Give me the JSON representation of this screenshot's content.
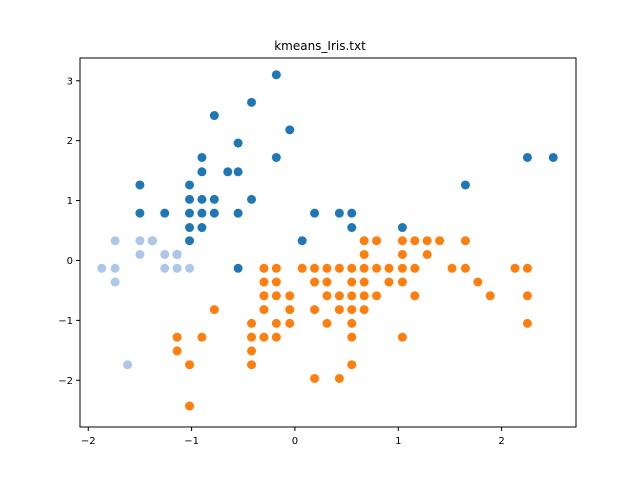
{
  "chart_data": {
    "type": "scatter",
    "title": "kmeans_Iris.txt",
    "xlabel": "",
    "ylabel": "",
    "xlim": [
      -2.08,
      2.72
    ],
    "ylim": [
      -2.78,
      3.38
    ],
    "xticks": [
      -2,
      -1,
      0,
      1,
      2
    ],
    "yticks": [
      -2,
      -1,
      0,
      1,
      2,
      3
    ],
    "grid": false,
    "legend": "none",
    "series": [
      {
        "color": "#1f77b4",
        "points": [
          [
            -0.18,
            3.1
          ],
          [
            -0.42,
            2.64
          ],
          [
            -0.78,
            2.42
          ],
          [
            -0.05,
            2.18
          ],
          [
            -0.55,
            1.96
          ],
          [
            -0.18,
            1.72
          ],
          [
            -0.9,
            1.72
          ],
          [
            2.25,
            1.72
          ],
          [
            2.5,
            1.72
          ],
          [
            -0.9,
            1.48
          ],
          [
            -0.65,
            1.48
          ],
          [
            -0.55,
            1.48
          ],
          [
            -1.5,
            1.26
          ],
          [
            -1.02,
            1.26
          ],
          [
            1.65,
            1.26
          ],
          [
            -1.02,
            1.02
          ],
          [
            -0.9,
            1.02
          ],
          [
            -0.78,
            1.02
          ],
          [
            -0.42,
            1.02
          ],
          [
            -1.5,
            0.79
          ],
          [
            -1.26,
            0.79
          ],
          [
            -1.02,
            0.79
          ],
          [
            -0.9,
            0.79
          ],
          [
            -0.78,
            0.79
          ],
          [
            -0.55,
            0.79
          ],
          [
            0.19,
            0.79
          ],
          [
            0.43,
            0.79
          ],
          [
            0.55,
            0.79
          ],
          [
            -1.02,
            0.55
          ],
          [
            -0.9,
            0.55
          ],
          [
            0.55,
            0.55
          ],
          [
            1.04,
            0.55
          ],
          [
            -1.38,
            0.33
          ],
          [
            -1.02,
            0.33
          ],
          [
            0.07,
            0.33
          ],
          [
            -1.14,
            0.1
          ],
          [
            -0.55,
            -0.13
          ]
        ]
      },
      {
        "color": "#aec7e8",
        "points": [
          [
            -1.74,
            0.33
          ],
          [
            -1.5,
            0.33
          ],
          [
            -1.38,
            0.33
          ],
          [
            -1.5,
            0.1
          ],
          [
            -1.26,
            0.1
          ],
          [
            -1.14,
            0.1
          ],
          [
            -1.87,
            -0.13
          ],
          [
            -1.74,
            -0.13
          ],
          [
            -1.26,
            -0.13
          ],
          [
            -1.14,
            -0.13
          ],
          [
            -1.02,
            -0.13
          ],
          [
            -1.74,
            -0.36
          ],
          [
            -1.62,
            -1.74
          ]
        ]
      },
      {
        "color": "#ff7f0e",
        "points": [
          [
            0.67,
            0.33
          ],
          [
            0.79,
            0.33
          ],
          [
            1.04,
            0.33
          ],
          [
            1.16,
            0.33
          ],
          [
            1.28,
            0.33
          ],
          [
            1.4,
            0.33
          ],
          [
            1.65,
            0.33
          ],
          [
            0.67,
            0.1
          ],
          [
            1.04,
            0.1
          ],
          [
            1.28,
            0.1
          ],
          [
            -0.3,
            -0.13
          ],
          [
            -0.18,
            -0.13
          ],
          [
            0.07,
            -0.13
          ],
          [
            0.19,
            -0.13
          ],
          [
            0.31,
            -0.13
          ],
          [
            0.43,
            -0.13
          ],
          [
            0.55,
            -0.13
          ],
          [
            0.67,
            -0.13
          ],
          [
            0.79,
            -0.13
          ],
          [
            0.91,
            -0.13
          ],
          [
            1.04,
            -0.13
          ],
          [
            1.16,
            -0.13
          ],
          [
            1.52,
            -0.13
          ],
          [
            1.65,
            -0.13
          ],
          [
            2.13,
            -0.13
          ],
          [
            2.25,
            -0.13
          ],
          [
            -0.3,
            -0.36
          ],
          [
            -0.18,
            -0.36
          ],
          [
            0.19,
            -0.36
          ],
          [
            0.31,
            -0.36
          ],
          [
            0.55,
            -0.36
          ],
          [
            0.67,
            -0.36
          ],
          [
            0.91,
            -0.36
          ],
          [
            1.04,
            -0.36
          ],
          [
            1.77,
            -0.36
          ],
          [
            -0.3,
            -0.59
          ],
          [
            -0.18,
            -0.59
          ],
          [
            -0.05,
            -0.59
          ],
          [
            0.31,
            -0.59
          ],
          [
            0.43,
            -0.59
          ],
          [
            0.55,
            -0.59
          ],
          [
            0.67,
            -0.59
          ],
          [
            0.79,
            -0.59
          ],
          [
            1.16,
            -0.59
          ],
          [
            1.89,
            -0.59
          ],
          [
            2.25,
            -0.59
          ],
          [
            -0.78,
            -0.82
          ],
          [
            -0.3,
            -0.82
          ],
          [
            -0.05,
            -0.82
          ],
          [
            0.19,
            -0.82
          ],
          [
            0.43,
            -0.82
          ],
          [
            0.55,
            -0.82
          ],
          [
            0.67,
            -0.82
          ],
          [
            -0.42,
            -1.05
          ],
          [
            -0.18,
            -1.05
          ],
          [
            -0.05,
            -1.05
          ],
          [
            0.31,
            -1.05
          ],
          [
            0.55,
            -1.05
          ],
          [
            2.25,
            -1.05
          ],
          [
            -1.14,
            -1.28
          ],
          [
            -0.9,
            -1.28
          ],
          [
            -0.42,
            -1.28
          ],
          [
            -0.3,
            -1.28
          ],
          [
            -0.18,
            -1.28
          ],
          [
            0.55,
            -1.28
          ],
          [
            1.04,
            -1.28
          ],
          [
            -1.14,
            -1.51
          ],
          [
            -0.42,
            -1.51
          ],
          [
            -1.02,
            -1.74
          ],
          [
            -0.42,
            -1.74
          ],
          [
            0.55,
            -1.74
          ],
          [
            0.19,
            -1.97
          ],
          [
            0.43,
            -1.97
          ],
          [
            -1.02,
            -2.43
          ]
        ]
      }
    ]
  }
}
